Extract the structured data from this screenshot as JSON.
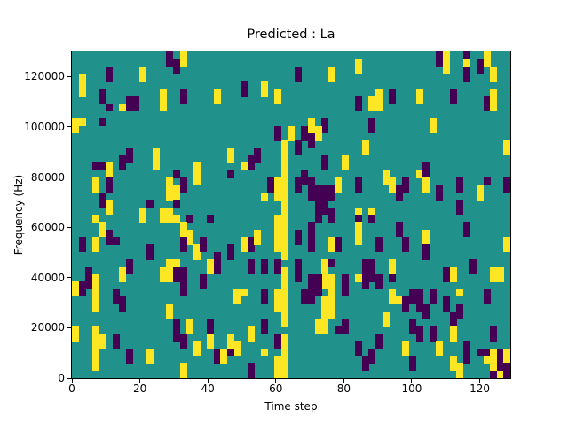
{
  "chart_data": {
    "type": "heatmap",
    "title": "Predicted : La",
    "xlabel": "Time step",
    "ylabel": "Frequency (Hz)",
    "x_ticks": [
      0,
      20,
      40,
      60,
      80,
      100,
      120
    ],
    "y_ticks": [
      0,
      20000,
      40000,
      60000,
      80000,
      100000,
      120000
    ],
    "xlim": [
      0,
      129
    ],
    "ylim": [
      0,
      130000
    ],
    "grid_cols": 65,
    "grid_rows": 44,
    "legend": "none",
    "grid": "off",
    "colors": {
      "mid_teal": "#21918c",
      "high_yellow": "#fde725",
      "low_purple": "#440154",
      "axis": "#000000",
      "figure_bg": "#ffffff"
    },
    "cells_format": "[col, row_from_top, run_height_rows, color_key] where y=high_yellow, p=low_purple on mid_teal background",
    "cells": [
      [
        1,
        3,
        3,
        "y"
      ],
      [
        0,
        9,
        2,
        "y"
      ],
      [
        1,
        9,
        1,
        "y"
      ],
      [
        4,
        9,
        1,
        "p"
      ],
      [
        5,
        2,
        2,
        "p"
      ],
      [
        4,
        5,
        2,
        "p"
      ],
      [
        5,
        7,
        1,
        "p"
      ],
      [
        7,
        7,
        1,
        "y"
      ],
      [
        8,
        6,
        2,
        "p"
      ],
      [
        9,
        6,
        2,
        "p"
      ],
      [
        10,
        2,
        2,
        "y"
      ],
      [
        13,
        5,
        3,
        "y"
      ],
      [
        14,
        0,
        2,
        "p"
      ],
      [
        15,
        1,
        2,
        "p"
      ],
      [
        16,
        0,
        2,
        "y"
      ],
      [
        16,
        5,
        2,
        "p"
      ],
      [
        21,
        5,
        2,
        "y"
      ],
      [
        25,
        4,
        2,
        "p"
      ],
      [
        28,
        4,
        2,
        "y"
      ],
      [
        30,
        5,
        2,
        "y"
      ],
      [
        30,
        10,
        2,
        "p"
      ],
      [
        32,
        10,
        2,
        "y"
      ],
      [
        31,
        12,
        2,
        "y"
      ],
      [
        8,
        13,
        2,
        "p"
      ],
      [
        12,
        13,
        3,
        "y"
      ],
      [
        7,
        14,
        2,
        "p"
      ],
      [
        3,
        15,
        1,
        "p"
      ],
      [
        4,
        15,
        1,
        "p"
      ],
      [
        5,
        15,
        2,
        "y"
      ],
      [
        5,
        17,
        2,
        "p"
      ],
      [
        3,
        17,
        2,
        "y"
      ],
      [
        4,
        19,
        2,
        "p"
      ],
      [
        5,
        20,
        2,
        "y"
      ],
      [
        15,
        16,
        1,
        "p"
      ],
      [
        14,
        17,
        3,
        "y"
      ],
      [
        15,
        18,
        2,
        "y"
      ],
      [
        16,
        17,
        2,
        "p"
      ],
      [
        18,
        15,
        2,
        "y"
      ],
      [
        18,
        17,
        1,
        "y"
      ],
      [
        11,
        20,
        1,
        "p"
      ],
      [
        13,
        21,
        1,
        "y"
      ],
      [
        14,
        21,
        1,
        "y"
      ],
      [
        23,
        16,
        1,
        "p"
      ],
      [
        23,
        13,
        2,
        "y"
      ],
      [
        27,
        13,
        2,
        "p"
      ],
      [
        26,
        14,
        2,
        "p"
      ],
      [
        25,
        15,
        1,
        "y"
      ],
      [
        29,
        17,
        2,
        "p"
      ],
      [
        28,
        19,
        1,
        "y"
      ],
      [
        10,
        21,
        2,
        "y"
      ],
      [
        15,
        20,
        1,
        "p"
      ],
      [
        30,
        17,
        3,
        "y"
      ],
      [
        31,
        14,
        8,
        "y"
      ],
      [
        33,
        2,
        2,
        "p"
      ],
      [
        38,
        2,
        2,
        "y"
      ],
      [
        42,
        1,
        2,
        "y"
      ],
      [
        54,
        0,
        2,
        "p"
      ],
      [
        55,
        0,
        3,
        "y"
      ],
      [
        58,
        0,
        1,
        "p"
      ],
      [
        58,
        1,
        1,
        "y"
      ],
      [
        58,
        2,
        2,
        "p"
      ],
      [
        60,
        1,
        2,
        "p"
      ],
      [
        61,
        0,
        2,
        "y"
      ],
      [
        62,
        2,
        2,
        "y"
      ],
      [
        45,
        5,
        3,
        "y"
      ],
      [
        47,
        5,
        2,
        "p"
      ],
      [
        51,
        5,
        2,
        "y"
      ],
      [
        56,
        5,
        2,
        "p"
      ],
      [
        42,
        6,
        2,
        "p"
      ],
      [
        44,
        6,
        2,
        "y"
      ],
      [
        61,
        6,
        2,
        "p"
      ],
      [
        62,
        5,
        3,
        "y"
      ],
      [
        44,
        9,
        2,
        "p"
      ],
      [
        35,
        9,
        2,
        "y"
      ],
      [
        37,
        9,
        2,
        "p"
      ],
      [
        36,
        10,
        2,
        "y"
      ],
      [
        34,
        10,
        2,
        "p"
      ],
      [
        35,
        11,
        2,
        "p"
      ],
      [
        33,
        12,
        2,
        "p"
      ],
      [
        53,
        9,
        2,
        "y"
      ],
      [
        43,
        12,
        2,
        "y"
      ],
      [
        64,
        12,
        2,
        "y"
      ],
      [
        40,
        14,
        2,
        "y"
      ],
      [
        37,
        14,
        2,
        "p"
      ],
      [
        34,
        16,
        2,
        "p"
      ],
      [
        33,
        17,
        2,
        "p"
      ],
      [
        35,
        17,
        3,
        "p"
      ],
      [
        36,
        18,
        3,
        "p"
      ],
      [
        37,
        18,
        2,
        "p"
      ],
      [
        38,
        18,
        2,
        "p"
      ],
      [
        36,
        20,
        2,
        "p"
      ],
      [
        37,
        20,
        2,
        "p"
      ],
      [
        39,
        17,
        2,
        "y"
      ],
      [
        42,
        17,
        2,
        "p"
      ],
      [
        46,
        16,
        2,
        "y"
      ],
      [
        47,
        17,
        2,
        "y"
      ],
      [
        49,
        17,
        2,
        "p"
      ],
      [
        48,
        18,
        2,
        "p"
      ],
      [
        51,
        16,
        1,
        "y"
      ],
      [
        52,
        15,
        2,
        "p"
      ],
      [
        52,
        17,
        2,
        "y"
      ],
      [
        54,
        18,
        2,
        "p"
      ],
      [
        57,
        17,
        2,
        "p"
      ],
      [
        60,
        18,
        2,
        "y"
      ],
      [
        61,
        17,
        1,
        "p"
      ],
      [
        64,
        17,
        2,
        "p"
      ],
      [
        42,
        21,
        1,
        "y"
      ],
      [
        44,
        21,
        1,
        "y"
      ],
      [
        57,
        20,
        2,
        "p"
      ],
      [
        38,
        21,
        2,
        "p"
      ],
      [
        3,
        22,
        1,
        "y"
      ],
      [
        4,
        23,
        2,
        "y"
      ],
      [
        3,
        25,
        2,
        "y"
      ],
      [
        1,
        25,
        2,
        "p"
      ],
      [
        5,
        24,
        2,
        "p"
      ],
      [
        6,
        25,
        1,
        "p"
      ],
      [
        2,
        29,
        3,
        "p"
      ],
      [
        3,
        30,
        5,
        "y"
      ],
      [
        1,
        31,
        2,
        "p"
      ],
      [
        0,
        31,
        2,
        "y"
      ],
      [
        0,
        37,
        2,
        "y"
      ],
      [
        3,
        37,
        3,
        "y"
      ],
      [
        4,
        38,
        2,
        "y"
      ],
      [
        3,
        40,
        3,
        "y"
      ],
      [
        6,
        38,
        2,
        "p"
      ],
      [
        8,
        40,
        2,
        "p"
      ],
      [
        6,
        32,
        2,
        "p"
      ],
      [
        7,
        33,
        2,
        "p"
      ],
      [
        8,
        28,
        2,
        "p"
      ],
      [
        7,
        29,
        2,
        "y"
      ],
      [
        11,
        26,
        2,
        "p"
      ],
      [
        11,
        40,
        2,
        "y"
      ],
      [
        13,
        22,
        1,
        "y"
      ],
      [
        14,
        22,
        1,
        "y"
      ],
      [
        15,
        22,
        1,
        "y"
      ],
      [
        17,
        22,
        1,
        "p"
      ],
      [
        16,
        23,
        2,
        "y"
      ],
      [
        17,
        24,
        2,
        "y"
      ],
      [
        20,
        22,
        1,
        "p"
      ],
      [
        16,
        25,
        2,
        "p"
      ],
      [
        18,
        26,
        2,
        "y"
      ],
      [
        19,
        25,
        2,
        "p"
      ],
      [
        14,
        28,
        2,
        "y"
      ],
      [
        13,
        29,
        2,
        "y"
      ],
      [
        14,
        29,
        2,
        "y"
      ],
      [
        15,
        28,
        1,
        "y"
      ],
      [
        15,
        29,
        2,
        "p"
      ],
      [
        16,
        29,
        2,
        "p"
      ],
      [
        20,
        28,
        2,
        "y"
      ],
      [
        21,
        27,
        3,
        "p"
      ],
      [
        19,
        30,
        2,
        "p"
      ],
      [
        16,
        31,
        2,
        "p"
      ],
      [
        14,
        34,
        2,
        "y"
      ],
      [
        15,
        36,
        3,
        "p"
      ],
      [
        17,
        36,
        2,
        "y"
      ],
      [
        16,
        38,
        2,
        "p"
      ],
      [
        18,
        39,
        2,
        "y"
      ],
      [
        16,
        42,
        2,
        "y"
      ],
      [
        20,
        36,
        2,
        "p"
      ],
      [
        20,
        38,
        2,
        "y"
      ],
      [
        21,
        40,
        2,
        "p"
      ],
      [
        22,
        40,
        2,
        "y"
      ],
      [
        24,
        32,
        2,
        "y"
      ],
      [
        23,
        26,
        2,
        "p"
      ],
      [
        25,
        25,
        2,
        "y"
      ],
      [
        26,
        25,
        2,
        "p"
      ],
      [
        26,
        28,
        2,
        "p"
      ],
      [
        28,
        28,
        2,
        "p"
      ],
      [
        25,
        32,
        1,
        "y"
      ],
      [
        28,
        32,
        2,
        "p"
      ],
      [
        26,
        37,
        2,
        "y"
      ],
      [
        23,
        38,
        2,
        "y"
      ],
      [
        24,
        39,
        2,
        "y"
      ],
      [
        23,
        40,
        1,
        "p"
      ],
      [
        26,
        42,
        2,
        "p"
      ],
      [
        27,
        24,
        2,
        "y"
      ],
      [
        28,
        36,
        2,
        "p"
      ],
      [
        28,
        40,
        1,
        "y"
      ],
      [
        30,
        22,
        5,
        "y"
      ],
      [
        31,
        22,
        6,
        "y"
      ],
      [
        30,
        28,
        2,
        "p"
      ],
      [
        31,
        29,
        8,
        "y"
      ],
      [
        30,
        32,
        3,
        "y"
      ],
      [
        31,
        38,
        6,
        "y"
      ],
      [
        30,
        38,
        2,
        "p"
      ],
      [
        30,
        41,
        3,
        "y"
      ],
      [
        36,
        22,
        1,
        "p"
      ],
      [
        35,
        23,
        2,
        "p"
      ],
      [
        42,
        22,
        1,
        "p"
      ],
      [
        42,
        23,
        3,
        "y"
      ],
      [
        44,
        22,
        1,
        "p"
      ],
      [
        48,
        23,
        2,
        "p"
      ],
      [
        52,
        24,
        2,
        "y"
      ],
      [
        58,
        23,
        2,
        "p"
      ],
      [
        64,
        25,
        2,
        "y"
      ],
      [
        33,
        24,
        2,
        "p"
      ],
      [
        35,
        25,
        2,
        "p"
      ],
      [
        38,
        25,
        2,
        "y"
      ],
      [
        39,
        25,
        2,
        "p"
      ],
      [
        45,
        25,
        2,
        "p"
      ],
      [
        49,
        25,
        2,
        "p"
      ],
      [
        52,
        26,
        2,
        "p"
      ],
      [
        33,
        28,
        3,
        "p"
      ],
      [
        38,
        28,
        1,
        "p"
      ],
      [
        37,
        28,
        4,
        "y"
      ],
      [
        35,
        30,
        2,
        "p"
      ],
      [
        36,
        30,
        3,
        "p"
      ],
      [
        34,
        32,
        2,
        "p"
      ],
      [
        35,
        32,
        2,
        "p"
      ],
      [
        38,
        30,
        3,
        "y"
      ],
      [
        38,
        33,
        2,
        "y"
      ],
      [
        37,
        33,
        3,
        "y"
      ],
      [
        36,
        36,
        2,
        "y"
      ],
      [
        37,
        36,
        2,
        "y"
      ],
      [
        38,
        35,
        1,
        "y"
      ],
      [
        39,
        37,
        1,
        "p"
      ],
      [
        40,
        30,
        2,
        "p"
      ],
      [
        40,
        32,
        1,
        "p"
      ],
      [
        40,
        36,
        2,
        "p"
      ],
      [
        43,
        28,
        2,
        "p"
      ],
      [
        44,
        28,
        3,
        "p"
      ],
      [
        43,
        30,
        2,
        "p"
      ],
      [
        42,
        30,
        1,
        "y"
      ],
      [
        45,
        30,
        2,
        "p"
      ],
      [
        47,
        28,
        2,
        "y"
      ],
      [
        47,
        30,
        1,
        "p"
      ],
      [
        47,
        32,
        2,
        "y"
      ],
      [
        48,
        33,
        1,
        "y"
      ],
      [
        49,
        33,
        2,
        "p"
      ],
      [
        50,
        32,
        2,
        "p"
      ],
      [
        51,
        33,
        2,
        "p"
      ],
      [
        50,
        36,
        2,
        "p"
      ],
      [
        51,
        32,
        2,
        "p"
      ],
      [
        53,
        32,
        2,
        "p"
      ],
      [
        52,
        34,
        2,
        "p"
      ],
      [
        51,
        37,
        2,
        "p"
      ],
      [
        53,
        37,
        2,
        "p"
      ],
      [
        46,
        35,
        2,
        "y"
      ],
      [
        45,
        38,
        2,
        "p"
      ],
      [
        42,
        39,
        2,
        "p"
      ],
      [
        43,
        41,
        2,
        "p"
      ],
      [
        44,
        40,
        2,
        "p"
      ],
      [
        49,
        39,
        2,
        "y"
      ],
      [
        50,
        41,
        2,
        "p"
      ],
      [
        54,
        39,
        2,
        "y"
      ],
      [
        55,
        33,
        2,
        "p"
      ],
      [
        56,
        29,
        2,
        "y"
      ],
      [
        55,
        29,
        2,
        "p"
      ],
      [
        57,
        32,
        1,
        "y"
      ],
      [
        57,
        34,
        2,
        "p"
      ],
      [
        56,
        35,
        2,
        "p"
      ],
      [
        56,
        37,
        2,
        "y"
      ],
      [
        58,
        39,
        2,
        "p"
      ],
      [
        56,
        41,
        2,
        "y"
      ],
      [
        57,
        42,
        2,
        "y"
      ],
      [
        58,
        40,
        2,
        "p"
      ],
      [
        59,
        28,
        2,
        "p"
      ],
      [
        61,
        32,
        2,
        "p"
      ],
      [
        62,
        29,
        2,
        "y"
      ],
      [
        63,
        29,
        2,
        "y"
      ],
      [
        62,
        37,
        2,
        "p"
      ],
      [
        61,
        40,
        2,
        "y"
      ],
      [
        62,
        41,
        2,
        "y"
      ],
      [
        60,
        40,
        1,
        "p"
      ],
      [
        61,
        40,
        1,
        "p"
      ],
      [
        62,
        40,
        2,
        "y"
      ],
      [
        63,
        40,
        3,
        "p"
      ],
      [
        64,
        40,
        2,
        "y"
      ],
      [
        64,
        42,
        1,
        "p"
      ],
      [
        62,
        43,
        1,
        "p"
      ],
      [
        63,
        43,
        1,
        "y"
      ],
      [
        64,
        43,
        1,
        "p"
      ]
    ]
  }
}
